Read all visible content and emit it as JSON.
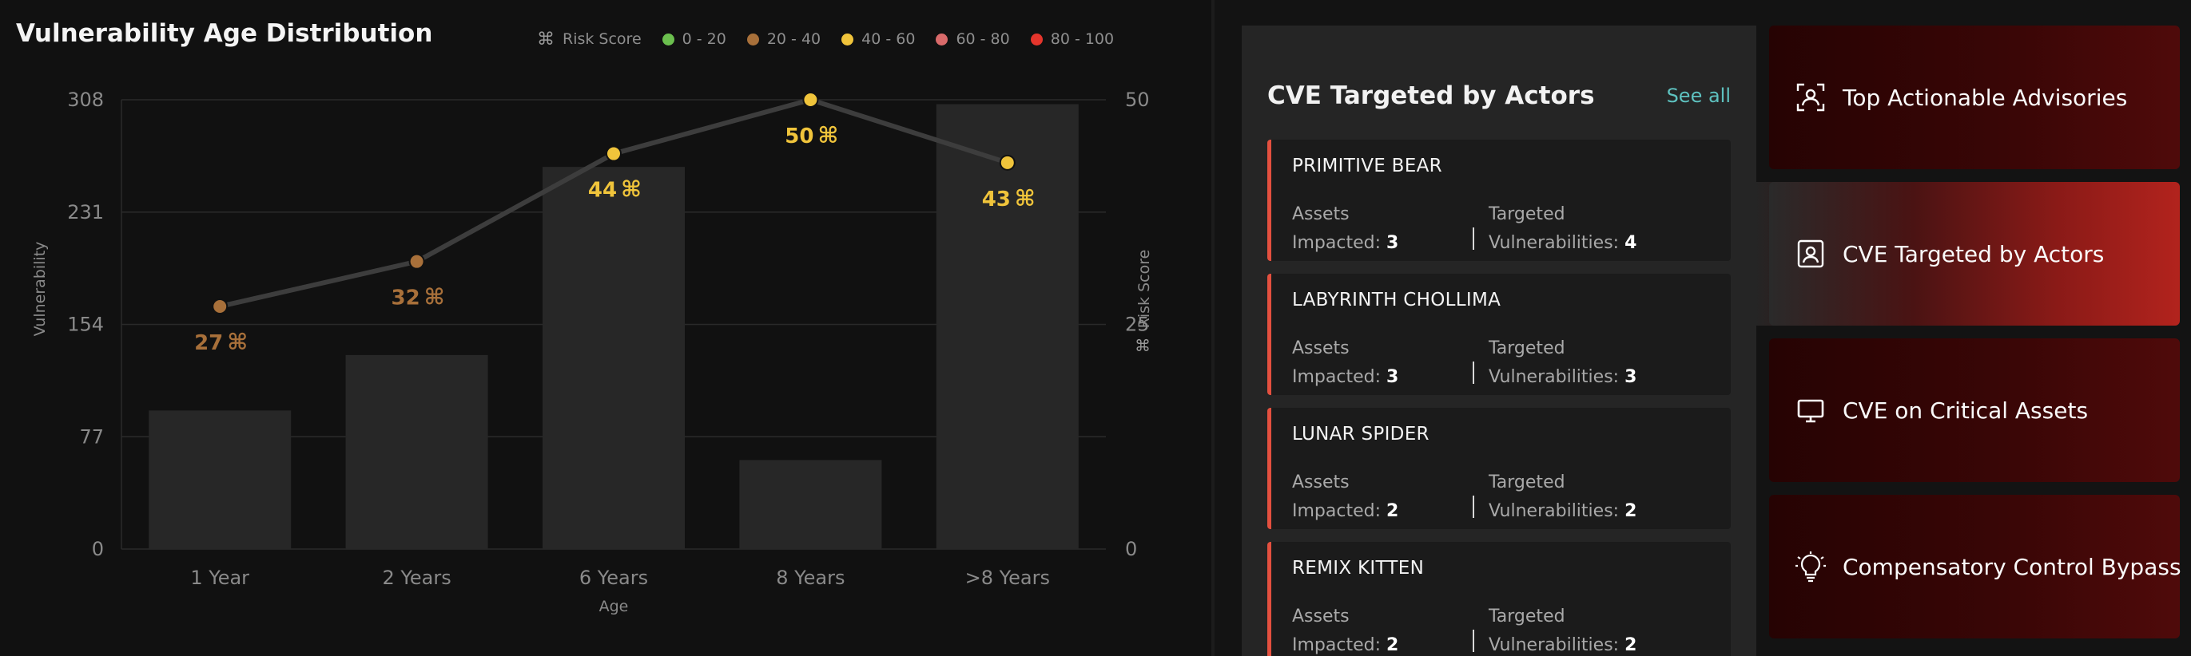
{
  "chart_title": "Vulnerability Age Distribution",
  "legend": {
    "title": "Risk Score",
    "title_icon": "command-icon",
    "items": [
      {
        "label": "0 - 20",
        "color": "#6bbf4e"
      },
      {
        "label": "20 - 40",
        "color": "#a8703a"
      },
      {
        "label": "40 - 60",
        "color": "#f0c43b"
      },
      {
        "label": "60 - 80",
        "color": "#d96a6a"
      },
      {
        "label": "80 - 100",
        "color": "#e5352c"
      }
    ]
  },
  "chart_data": {
    "type": "bar",
    "xlabel": "Age",
    "ylabel": "Vulnerability",
    "y2label": "Risk Score",
    "categories": [
      "1 Year",
      "2 Years",
      "6 Years",
      "8 Years",
      ">8 Years"
    ],
    "ylim": [
      0,
      308
    ],
    "yticks": [
      "0",
      "77",
      "154",
      "231",
      "308"
    ],
    "y2lim": [
      0,
      50
    ],
    "y2ticks": [
      "0",
      "25",
      "50"
    ],
    "series": [
      {
        "type": "bar",
        "values": [
          95,
          133,
          262,
          61,
          305
        ]
      },
      {
        "type": "line",
        "values": [
          27,
          32,
          44,
          50,
          43
        ]
      }
    ],
    "line_colors": [
      "#a8703a",
      "#a8703a",
      "#f0c43b",
      "#f0c43b",
      "#f0c43b"
    ],
    "data_labels": [
      "27",
      "32",
      "44",
      "50",
      "43"
    ]
  },
  "cve_panel": {
    "title": "CVE Targeted by Actors",
    "see_all": "See all",
    "assets_label_1": "Assets",
    "assets_label_2": "Impacted:",
    "targeted_label_1": "Targeted",
    "targeted_label_2": "Vulnerabilities:",
    "actors": [
      {
        "name": "PRIMITIVE BEAR",
        "assets": "3",
        "targeted": "4"
      },
      {
        "name": "LABYRINTH CHOLLIMA",
        "assets": "3",
        "targeted": "3"
      },
      {
        "name": "LUNAR SPIDER",
        "assets": "2",
        "targeted": "2"
      },
      {
        "name": "REMIX KITTEN",
        "assets": "2",
        "targeted": "2"
      }
    ]
  },
  "nav": [
    {
      "label": "Top Actionable Advisories",
      "icon": "person-scan-icon",
      "active": false
    },
    {
      "label": "CVE Targeted by Actors",
      "icon": "id-badge-icon",
      "active": true
    },
    {
      "label": "CVE on Critical Assets",
      "icon": "monitor-icon",
      "active": false
    },
    {
      "label": "Compensatory Control Bypass",
      "icon": "lightbulb-icon",
      "active": false
    }
  ]
}
